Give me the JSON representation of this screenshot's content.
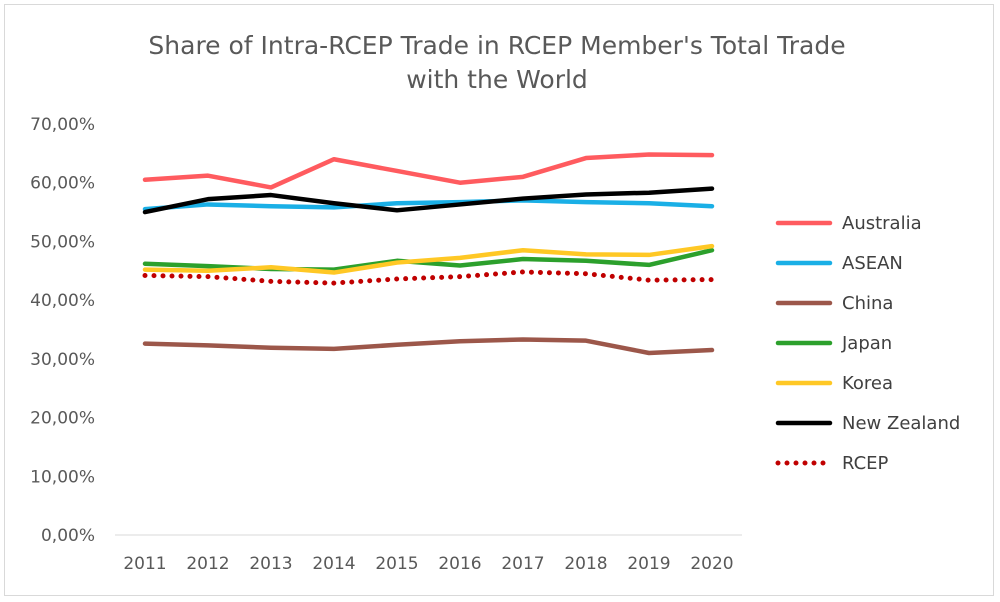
{
  "chart_data": {
    "type": "line",
    "title": "Share of Intra-RCEP Trade in RCEP Member's Total Trade with the World",
    "title_lines": [
      "Share of Intra-RCEP Trade in RCEP Member's Total Trade",
      "with the World"
    ],
    "xlabel": "",
    "ylabel": "",
    "categories": [
      "2011",
      "2012",
      "2013",
      "2014",
      "2015",
      "2016",
      "2017",
      "2018",
      "2019",
      "2020"
    ],
    "ylim": [
      0,
      70
    ],
    "yticks": [
      "0,00%",
      "10,00%",
      "20,00%",
      "30,00%",
      "40,00%",
      "50,00%",
      "60,00%",
      "70,00%"
    ],
    "grid": false,
    "legend_position": "right",
    "series": [
      {
        "name": "Australia",
        "color": "#ff5b5f",
        "style": "solid",
        "values": [
          60.5,
          61.2,
          59.2,
          64.0,
          62.0,
          60.0,
          61.0,
          64.2,
          64.8,
          64.7
        ]
      },
      {
        "name": "ASEAN",
        "color": "#1aafe6",
        "style": "solid",
        "values": [
          55.5,
          56.3,
          56.0,
          55.8,
          56.5,
          56.7,
          57.0,
          56.7,
          56.5,
          56.0
        ]
      },
      {
        "name": "China",
        "color": "#9c574a",
        "style": "solid",
        "values": [
          32.6,
          32.3,
          31.9,
          31.7,
          32.4,
          33.0,
          33.3,
          33.1,
          31.0,
          31.5
        ]
      },
      {
        "name": "Japan",
        "color": "#2ca02c",
        "style": "solid",
        "values": [
          46.2,
          45.8,
          45.3,
          45.2,
          46.7,
          45.9,
          47.0,
          46.7,
          46.0,
          48.5
        ]
      },
      {
        "name": "Korea",
        "color": "#ffc825",
        "style": "solid",
        "values": [
          45.2,
          45.0,
          45.6,
          44.7,
          46.4,
          47.2,
          48.5,
          47.8,
          47.7,
          49.2
        ]
      },
      {
        "name": "New Zealand",
        "color": "#000000",
        "style": "solid",
        "values": [
          55.0,
          57.2,
          57.9,
          56.5,
          55.3,
          56.3,
          57.3,
          58.0,
          58.3,
          59.0
        ]
      },
      {
        "name": "RCEP",
        "color": "#c00000",
        "style": "dotted",
        "values": [
          44.2,
          44.0,
          43.2,
          42.9,
          43.6,
          44.0,
          44.8,
          44.5,
          43.4,
          43.5
        ]
      }
    ]
  }
}
